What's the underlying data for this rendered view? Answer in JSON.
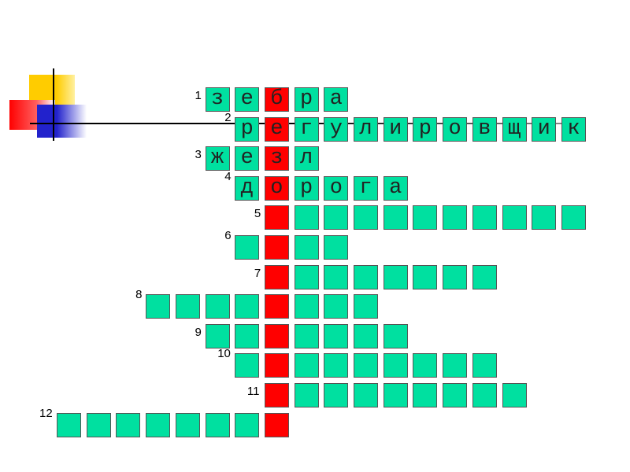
{
  "colors": {
    "cell": "#00e0a0",
    "key_column": "#ff0000"
  },
  "key_column": 7,
  "rows": [
    {
      "number": "1",
      "start": 5,
      "length": 5,
      "letters": "зебра"
    },
    {
      "number": "2",
      "start": 6,
      "length": 12,
      "letters": "регулировщик"
    },
    {
      "number": "3",
      "start": 5,
      "length": 4,
      "letters": "жезл"
    },
    {
      "number": "4",
      "start": 6,
      "length": 6,
      "letters": "дорога"
    },
    {
      "number": "5",
      "start": 7,
      "length": 11,
      "letters": ""
    },
    {
      "number": "6",
      "start": 6,
      "length": 4,
      "letters": ""
    },
    {
      "number": "7",
      "start": 7,
      "length": 8,
      "letters": ""
    },
    {
      "number": "8",
      "start": 3,
      "length": 8,
      "letters": ""
    },
    {
      "number": "9",
      "start": 5,
      "length": 7,
      "letters": ""
    },
    {
      "number": "10",
      "start": 6,
      "length": 9,
      "letters": ""
    },
    {
      "number": "11",
      "start": 7,
      "length": 9,
      "letters": ""
    },
    {
      "number": "12",
      "start": 0,
      "length": 8,
      "letters": ""
    }
  ]
}
